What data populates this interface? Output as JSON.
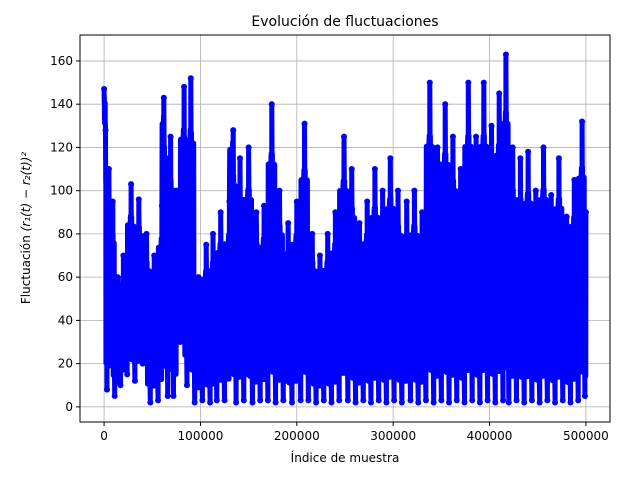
{
  "chart_data": {
    "type": "line",
    "title": "Evolución de fluctuaciones",
    "xlabel": "Índice de muestra",
    "ylabel_prefix": "Fluctuación ",
    "ylabel_formula": "(r₁(t) − r₂(t))²",
    "xlim": [
      -25000,
      525000
    ],
    "ylim": [
      -7,
      172
    ],
    "xticks": [
      0,
      100000,
      200000,
      300000,
      400000,
      500000
    ],
    "xtick_labels": [
      "0",
      "100000",
      "200000",
      "300000",
      "400000",
      "500000"
    ],
    "yticks": [
      0,
      20,
      40,
      60,
      80,
      100,
      120,
      140,
      160
    ],
    "ytick_labels": [
      "0",
      "20",
      "40",
      "60",
      "80",
      "100",
      "120",
      "140",
      "160"
    ],
    "grid": true,
    "series": [
      {
        "color": "#0000ff",
        "marker": "circle",
        "x_start": 0,
        "x_end": 500000,
        "y_min": 0,
        "y_max": 163,
        "points": [
          [
            0,
            147
          ],
          [
            1500,
            128
          ],
          [
            3000,
            8
          ],
          [
            5000,
            110
          ],
          [
            7000,
            25
          ],
          [
            9000,
            95
          ],
          [
            11000,
            5
          ],
          [
            14000,
            60
          ],
          [
            17000,
            10
          ],
          [
            20000,
            70
          ],
          [
            24000,
            15
          ],
          [
            28000,
            103
          ],
          [
            32000,
            12
          ],
          [
            36000,
            96
          ],
          [
            40000,
            20
          ],
          [
            44000,
            80
          ],
          [
            48000,
            2
          ],
          [
            52000,
            70
          ],
          [
            56000,
            3
          ],
          [
            60000,
            93
          ],
          [
            62000,
            143
          ],
          [
            66000,
            5
          ],
          [
            69000,
            125
          ],
          [
            72000,
            5
          ],
          [
            75000,
            100
          ],
          [
            79000,
            30
          ],
          [
            83000,
            148
          ],
          [
            86000,
            10
          ],
          [
            90000,
            152
          ],
          [
            94000,
            2
          ],
          [
            98000,
            60
          ],
          [
            102000,
            3
          ],
          [
            106000,
            75
          ],
          [
            110000,
            2
          ],
          [
            113000,
            80
          ],
          [
            117000,
            3
          ],
          [
            121000,
            90
          ],
          [
            125000,
            3
          ],
          [
            130000,
            95
          ],
          [
            134000,
            128
          ],
          [
            137000,
            2
          ],
          [
            141000,
            115
          ],
          [
            145000,
            3
          ],
          [
            150000,
            120
          ],
          [
            154000,
            2
          ],
          [
            158000,
            90
          ],
          [
            162000,
            3
          ],
          [
            166000,
            93
          ],
          [
            170000,
            3
          ],
          [
            174000,
            140
          ],
          [
            178000,
            2
          ],
          [
            182000,
            100
          ],
          [
            186000,
            3
          ],
          [
            191000,
            85
          ],
          [
            195000,
            2
          ],
          [
            200000,
            95
          ],
          [
            204000,
            3
          ],
          [
            208000,
            131
          ],
          [
            212000,
            3
          ],
          [
            216000,
            80
          ],
          [
            220000,
            2
          ],
          [
            224000,
            70
          ],
          [
            228000,
            3
          ],
          [
            232000,
            80
          ],
          [
            236000,
            2
          ],
          [
            240000,
            90
          ],
          [
            244000,
            3
          ],
          [
            249000,
            125
          ],
          [
            253000,
            3
          ],
          [
            257000,
            110
          ],
          [
            261000,
            2
          ],
          [
            265000,
            85
          ],
          [
            269000,
            3
          ],
          [
            273000,
            95
          ],
          [
            277000,
            2
          ],
          [
            281000,
            110
          ],
          [
            285000,
            3
          ],
          [
            289000,
            100
          ],
          [
            293000,
            2
          ],
          [
            297000,
            115
          ],
          [
            301000,
            3
          ],
          [
            305000,
            100
          ],
          [
            309000,
            2
          ],
          [
            314000,
            95
          ],
          [
            318000,
            3
          ],
          [
            322000,
            100
          ],
          [
            326000,
            2
          ],
          [
            330000,
            90
          ],
          [
            334000,
            3
          ],
          [
            338000,
            150
          ],
          [
            342000,
            2
          ],
          [
            346000,
            120
          ],
          [
            350000,
            3
          ],
          [
            354000,
            140
          ],
          [
            358000,
            2
          ],
          [
            362000,
            125
          ],
          [
            366000,
            3
          ],
          [
            370000,
            110
          ],
          [
            374000,
            2
          ],
          [
            378000,
            150
          ],
          [
            382000,
            3
          ],
          [
            386000,
            125
          ],
          [
            390000,
            2
          ],
          [
            394000,
            150
          ],
          [
            398000,
            3
          ],
          [
            402000,
            130
          ],
          [
            406000,
            2
          ],
          [
            410000,
            145
          ],
          [
            414000,
            3
          ],
          [
            417000,
            163
          ],
          [
            420000,
            2
          ],
          [
            424000,
            120
          ],
          [
            428000,
            3
          ],
          [
            432000,
            115
          ],
          [
            436000,
            2
          ],
          [
            440000,
            118
          ],
          [
            444000,
            3
          ],
          [
            448000,
            100
          ],
          [
            452000,
            2
          ],
          [
            456000,
            120
          ],
          [
            460000,
            3
          ],
          [
            464000,
            98
          ],
          [
            468000,
            2
          ],
          [
            472000,
            115
          ],
          [
            476000,
            3
          ],
          [
            480000,
            88
          ],
          [
            484000,
            2
          ],
          [
            488000,
            105
          ],
          [
            492000,
            3
          ],
          [
            496000,
            132
          ],
          [
            499000,
            5
          ],
          [
            500000,
            90
          ]
        ]
      }
    ]
  }
}
